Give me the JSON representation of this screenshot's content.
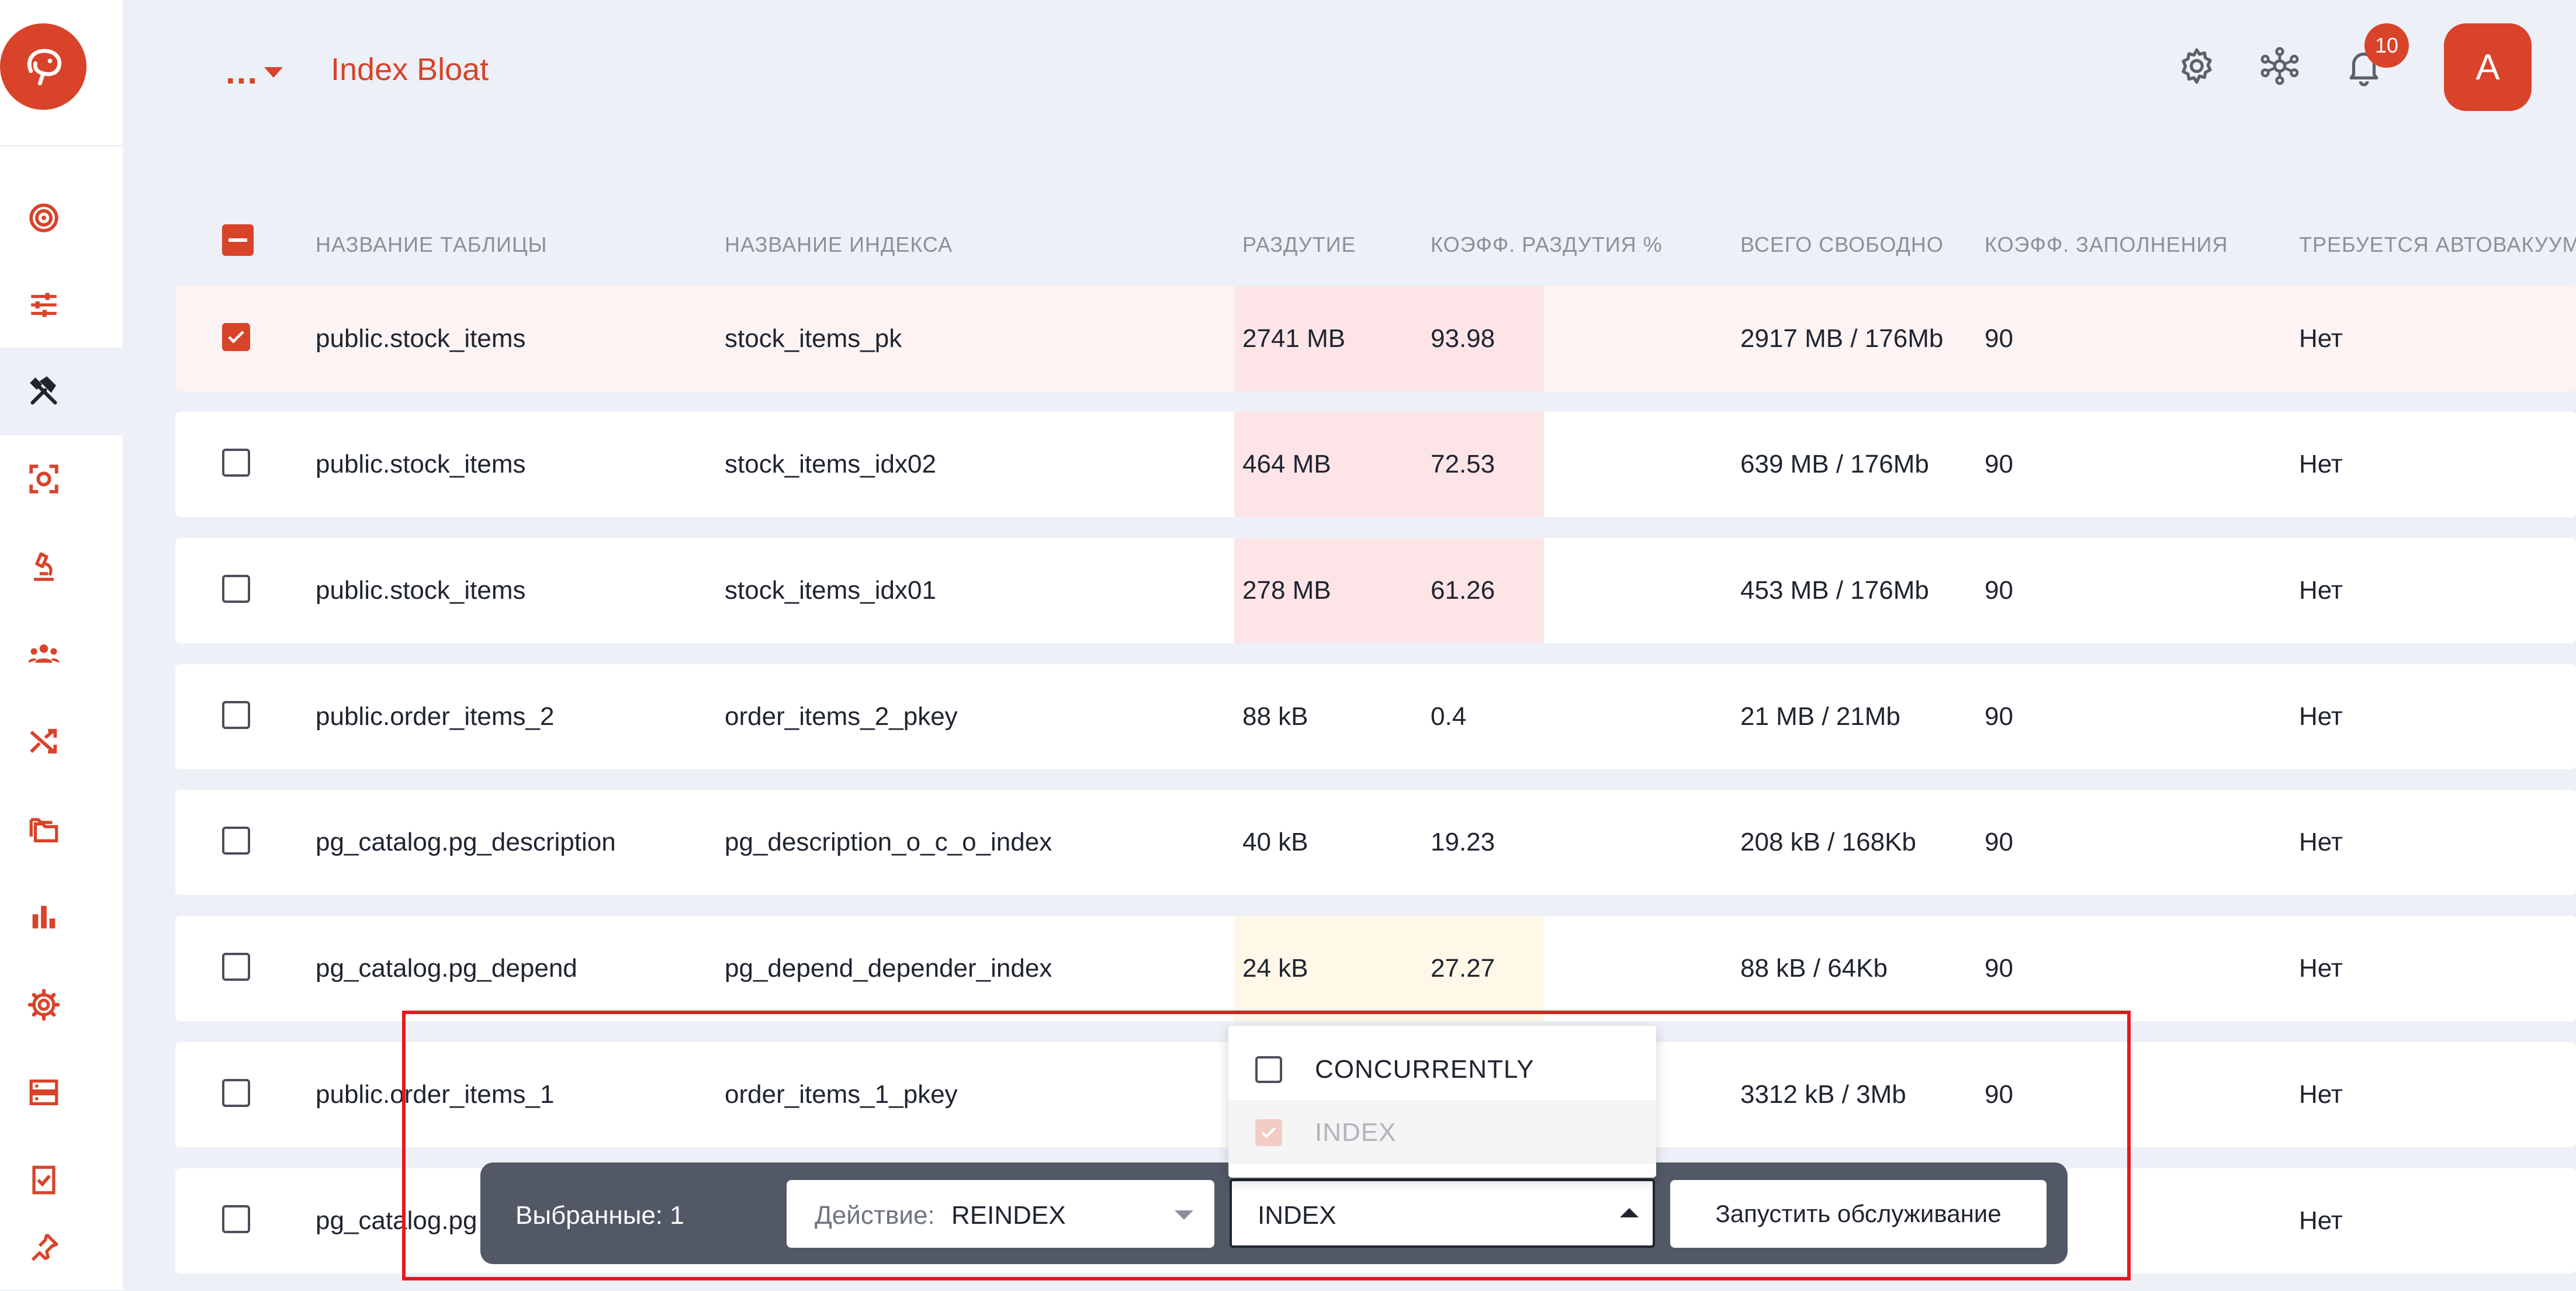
{
  "header": {
    "breadcrumb_more": "...",
    "title": "Index Bloat",
    "notification_count": "10",
    "avatar_initial": "A"
  },
  "sidebar": {
    "items": [
      {
        "icon": "target-icon"
      },
      {
        "icon": "sliders-icon"
      },
      {
        "icon": "tools-icon",
        "active": true
      },
      {
        "icon": "scan-icon"
      },
      {
        "icon": "microscope-icon"
      },
      {
        "icon": "users-icon"
      },
      {
        "icon": "shuffle-icon"
      },
      {
        "icon": "folders-icon"
      },
      {
        "icon": "bar-chart-icon"
      },
      {
        "icon": "gear-icon"
      },
      {
        "icon": "server-icon"
      },
      {
        "icon": "checklist-icon"
      },
      {
        "icon": "pin-icon"
      }
    ]
  },
  "table": {
    "columns": [
      "НАЗВАНИЕ ТАБЛИЦЫ",
      "НАЗВАНИЕ ИНДЕКСА",
      "РАЗДУТИЕ",
      "КОЭФФ. РАЗДУТИЯ %",
      "ВСЕГО СВОБОДНО",
      "КОЭФФ. ЗАПОЛНЕНИЯ",
      "ТРЕБУЕТСЯ АВТОВАКУУМ"
    ],
    "rows": [
      {
        "checked": true,
        "table": "public.stock_items",
        "index": "stock_items_pk",
        "bloat": "2741 MB",
        "ratio": "93.98",
        "free": "2917 MB / 176Mb",
        "fill": "90",
        "autovacuum": "Нет",
        "level": "high"
      },
      {
        "checked": false,
        "table": "public.stock_items",
        "index": "stock_items_idx02",
        "bloat": "464 MB",
        "ratio": "72.53",
        "free": "639 MB / 176Mb",
        "fill": "90",
        "autovacuum": "Нет",
        "level": "high"
      },
      {
        "checked": false,
        "table": "public.stock_items",
        "index": "stock_items_idx01",
        "bloat": "278 MB",
        "ratio": "61.26",
        "free": "453 MB / 176Mb",
        "fill": "90",
        "autovacuum": "Нет",
        "level": "high"
      },
      {
        "checked": false,
        "table": "public.order_items_2",
        "index": "order_items_2_pkey",
        "bloat": "88 kB",
        "ratio": "0.4",
        "free": "21 MB / 21Mb",
        "fill": "90",
        "autovacuum": "Нет",
        "level": "none"
      },
      {
        "checked": false,
        "table": "pg_catalog.pg_description",
        "index": "pg_description_o_c_o_index",
        "bloat": "40 kB",
        "ratio": "19.23",
        "free": "208 kB / 168Kb",
        "fill": "90",
        "autovacuum": "Нет",
        "level": "none"
      },
      {
        "checked": false,
        "table": "pg_catalog.pg_depend",
        "index": "pg_depend_depender_index",
        "bloat": "24 kB",
        "ratio": "27.27",
        "free": "88 kB / 64Kb",
        "fill": "90",
        "autovacuum": "Нет",
        "level": "medium"
      },
      {
        "checked": false,
        "table": "public.order_items_1",
        "index": "order_items_1_pkey",
        "bloat": "",
        "ratio": "",
        "free": "3312 kB / 3Mb",
        "fill": "90",
        "autovacuum": "Нет",
        "level": "none"
      },
      {
        "checked": false,
        "table": "pg_catalog.pg",
        "index": "",
        "bloat": "",
        "ratio": "",
        "free": "",
        "fill": "",
        "autovacuum": "Нет",
        "level": "none"
      }
    ]
  },
  "action_bar": {
    "selected_label": "Выбранные: 1",
    "action_label": "Действие:",
    "action_value": "REINDEX",
    "mode_value": "INDEX",
    "run_label": "Запустить обслуживание"
  },
  "mode_dropdown": {
    "options": [
      {
        "label": "CONCURRENTLY",
        "checked": false,
        "disabled": false
      },
      {
        "label": "INDEX",
        "checked": true,
        "disabled": true
      }
    ]
  },
  "colors": {
    "accent": "#d8432a",
    "high_bloat": "#fde5e7",
    "medium_bloat": "#fff8e8",
    "highlight_box": "#e3191f"
  }
}
